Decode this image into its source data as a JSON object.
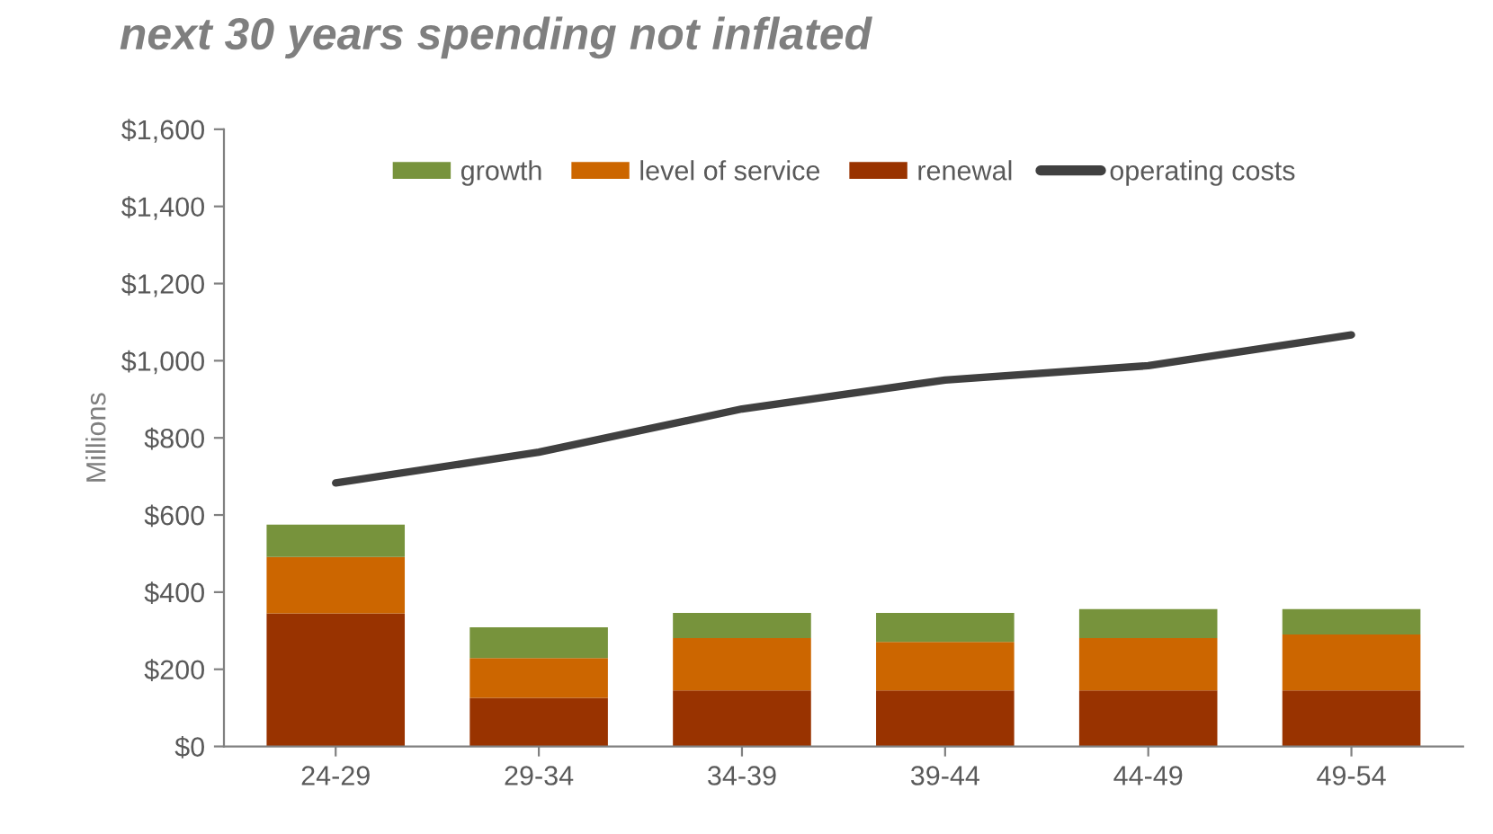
{
  "chart_data": {
    "type": "bar",
    "stacked": true,
    "title": "next 30 years spending not inflated",
    "ylabel": "Millions",
    "categories": [
      "24-29",
      "29-34",
      "34-39",
      "39-44",
      "44-49",
      "49-54"
    ],
    "series": [
      {
        "name": "renewal",
        "color": "#993300",
        "values": [
          345,
          126,
          145,
          145,
          145,
          145
        ]
      },
      {
        "name": "level of service",
        "color": "#cc6600",
        "values": [
          146,
          103,
          136,
          126,
          136,
          145
        ]
      },
      {
        "name": "growth",
        "color": "#77933c",
        "values": [
          84,
          80,
          65,
          75,
          75,
          66
        ]
      },
      {
        "name": "operating costs",
        "type": "line",
        "color": "#404040",
        "values": [
          683,
          763,
          875,
          950,
          987,
          1067
        ]
      }
    ],
    "ylim": [
      0,
      1600
    ],
    "yticks": [
      {
        "value": 0,
        "label": "$0"
      },
      {
        "value": 200,
        "label": "$200"
      },
      {
        "value": 400,
        "label": "$400"
      },
      {
        "value": 600,
        "label": "$600"
      },
      {
        "value": 800,
        "label": "$800"
      },
      {
        "value": 1000,
        "label": "$1,000"
      },
      {
        "value": 1200,
        "label": "$1,200"
      },
      {
        "value": 1400,
        "label": "$1,400"
      },
      {
        "value": 1600,
        "label": "$1,600"
      }
    ],
    "grid": false,
    "legend": "top",
    "marker": "none",
    "line_style": "solid"
  }
}
